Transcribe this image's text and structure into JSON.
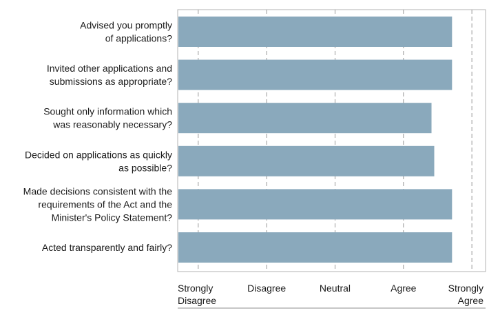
{
  "chart_data": {
    "type": "bar",
    "orientation": "horizontal",
    "title": "",
    "xlabel": "",
    "ylabel": "",
    "categories": [
      [
        "Advised you promptly",
        "of applications?"
      ],
      [
        "Invited other applications and",
        "submissions as appropriate?"
      ],
      [
        "Sought only information which",
        "was reasonably necessary?"
      ],
      [
        "Decided on applications as quickly",
        "as possible?"
      ],
      [
        "Made decisions consistent with the",
        "requirements of the Act and the",
        "Minister's Policy Statement?"
      ],
      [
        "Acted transparently and fairly?"
      ]
    ],
    "values": [
      4.71,
      4.71,
      4.41,
      4.45,
      4.71,
      4.71
    ],
    "xlim": [
      0.7,
      5.2
    ],
    "x_ticks": [
      1,
      2,
      3,
      4,
      5
    ],
    "x_tick_labels": [
      [
        "Strongly",
        "Disagree"
      ],
      [
        "Disagree"
      ],
      [
        "Neutral"
      ],
      [
        "Agree"
      ],
      [
        "Strongly",
        "Agree"
      ]
    ],
    "grid": "vertical-dashed",
    "legend": "none",
    "colors": {
      "bar": "#8aa9bc",
      "grid": "#999999",
      "frame": "#b3b3b3",
      "text": "#1a1a1a"
    }
  }
}
